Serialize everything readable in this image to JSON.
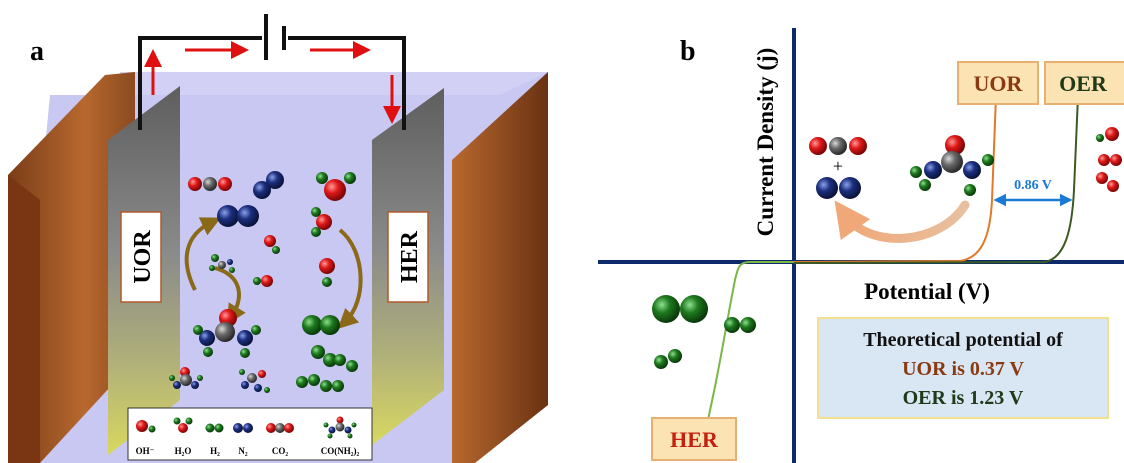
{
  "panel_a": {
    "label": "a",
    "anode_label": "UOR",
    "cathode_label": "HER",
    "legend": [
      {
        "species": "OH",
        "label": "OH⁻"
      },
      {
        "species": "H2O",
        "label": "H₂O"
      },
      {
        "species": "H2",
        "label": "H₂"
      },
      {
        "species": "N2",
        "label": "N₂"
      },
      {
        "species": "CO2",
        "label": "CO₂"
      },
      {
        "species": "UREA",
        "label": "CO(NH₂)₂"
      }
    ],
    "colors": {
      "electrolyte": "#c9c8f2",
      "electrode_wall": "#a0562a",
      "anode_plate": "#6f6f6f",
      "arrow": "#e01010",
      "cycle_arrow": "#8a6a18",
      "oxygen": "#e01818",
      "hydrogen": "#1e7a1e",
      "nitrogen": "#1c2f80",
      "carbon": "#6a6a6a"
    }
  },
  "panel_b": {
    "label": "b",
    "y_axis_label": "Current Density (j)",
    "x_axis_label": "Potential (V)",
    "curve_labels": {
      "uor": "UOR",
      "oer": "OER",
      "her": "HER"
    },
    "gap_label": "0.86 V",
    "plus_sign": "+",
    "theory_box": {
      "line1": "Theoretical potential of",
      "line2": "UOR is 0.37 V",
      "line3": "OER is 1.23 V"
    },
    "colors": {
      "axis": "#0d2a6b",
      "uor_curve": "#e07a2a",
      "oer_curve": "#3c5a22",
      "her_curve": "#7ab648",
      "gap_arrow": "#1a7ad4",
      "label_box_fill": "#fbe3b4",
      "label_box_border": "#e8b070",
      "theory_box_fill": "#d9e6f3",
      "theory_box_border": "#f0e090",
      "uor_text": "#8a3a12",
      "oer_text": "#1e3a18"
    }
  }
}
